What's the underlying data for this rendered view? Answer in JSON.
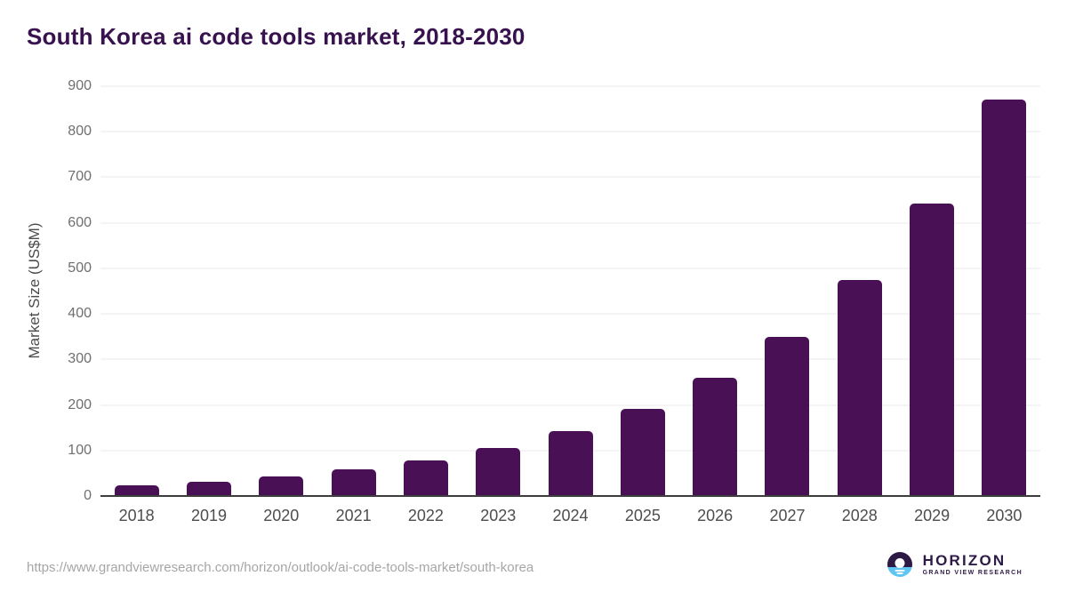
{
  "title": "South Korea ai code tools market, 2018-2030",
  "chart_data": {
    "type": "bar",
    "title": "South Korea ai code tools market, 2018-2030",
    "categories": [
      "2018",
      "2019",
      "2020",
      "2021",
      "2022",
      "2023",
      "2024",
      "2025",
      "2026",
      "2027",
      "2028",
      "2029",
      "2030"
    ],
    "values": [
      24,
      32,
      43,
      59,
      79,
      106,
      142,
      192,
      260,
      350,
      475,
      643,
      870
    ],
    "xlabel": "",
    "ylabel": "Market Size (US$M)",
    "ylim": [
      0,
      900
    ],
    "ytick_step": 100,
    "grid": true,
    "legend": false,
    "bar_color": "#4a1056"
  },
  "colors": {
    "title_text": "#38124e",
    "bar": "#4a1056",
    "gridline": "#e8e8e8",
    "axis_line": "#3d3d3d",
    "tick_text": "#6f6f6f",
    "logo_purple": "#2e1a47",
    "logo_blue": "#5ec6f2"
  },
  "footer": {
    "source_url": "https://www.grandviewresearch.com/horizon/outlook/ai-code-tools-market/south-korea",
    "logo": {
      "name": "HORIZON",
      "tagline": "GRAND VIEW RESEARCH"
    }
  }
}
